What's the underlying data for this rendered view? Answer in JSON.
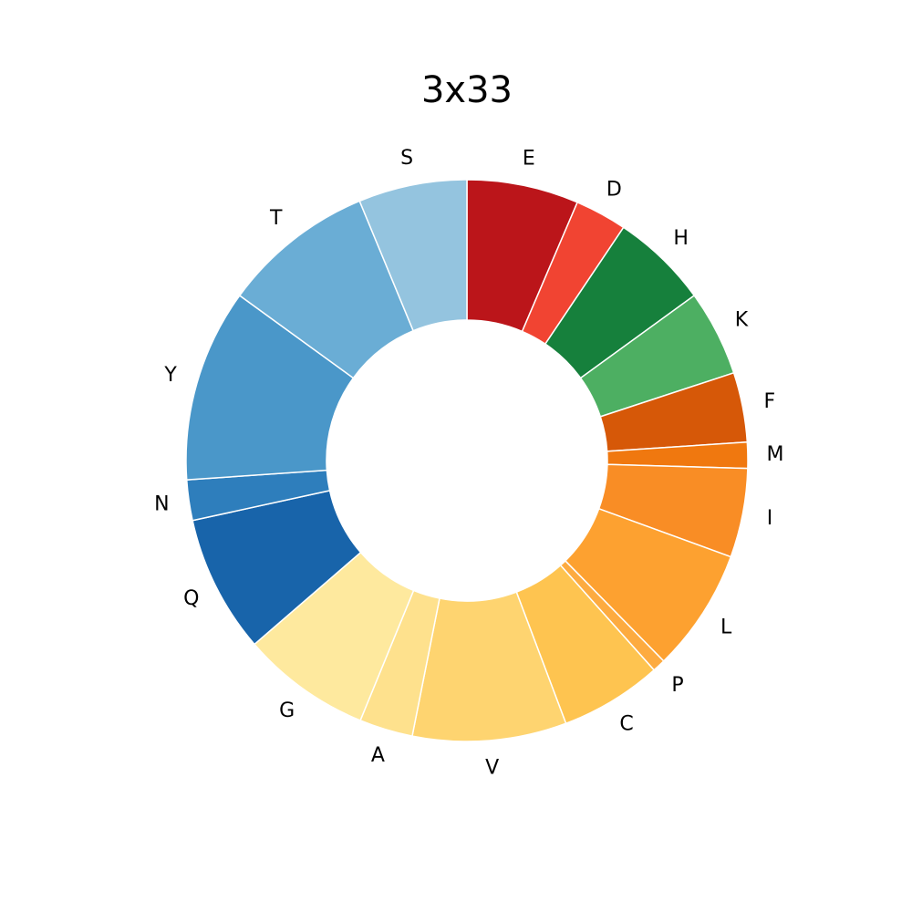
{
  "chart_data": {
    "type": "pie",
    "donut": true,
    "title": "3x33",
    "start": "top",
    "direction": "clockwise",
    "slices": [
      {
        "label": "E",
        "value": 6.9,
        "color": "#bb151a"
      },
      {
        "label": "D",
        "value": 3.2,
        "color": "#f14432"
      },
      {
        "label": "H",
        "value": 6.0,
        "color": "#16803c"
      },
      {
        "label": "K",
        "value": 5.3,
        "color": "#4daf62"
      },
      {
        "label": "F",
        "value": 4.3,
        "color": "#d65808"
      },
      {
        "label": "M",
        "value": 1.6,
        "color": "#f0780f"
      },
      {
        "label": "I",
        "value": 5.5,
        "color": "#f98d25"
      },
      {
        "label": "L",
        "value": 7.6,
        "color": "#fda130"
      },
      {
        "label": "P",
        "value": 0.8,
        "color": "#fdab40"
      },
      {
        "label": "C",
        "value": 6.3,
        "color": "#fec450"
      },
      {
        "label": "V",
        "value": 9.5,
        "color": "#fed470"
      },
      {
        "label": "A",
        "value": 3.3,
        "color": "#fee18d"
      },
      {
        "label": "G",
        "value": 8.0,
        "color": "#fee99e"
      },
      {
        "label": "Q",
        "value": 8.5,
        "color": "#1864aa"
      },
      {
        "label": "N",
        "value": 2.5,
        "color": "#2e7ebc"
      },
      {
        "label": "Y",
        "value": 11.9,
        "color": "#4a97c9"
      },
      {
        "label": "T",
        "value": 9.4,
        "color": "#6aadd5"
      },
      {
        "label": "S",
        "value": 6.7,
        "color": "#94c4df"
      }
    ]
  }
}
